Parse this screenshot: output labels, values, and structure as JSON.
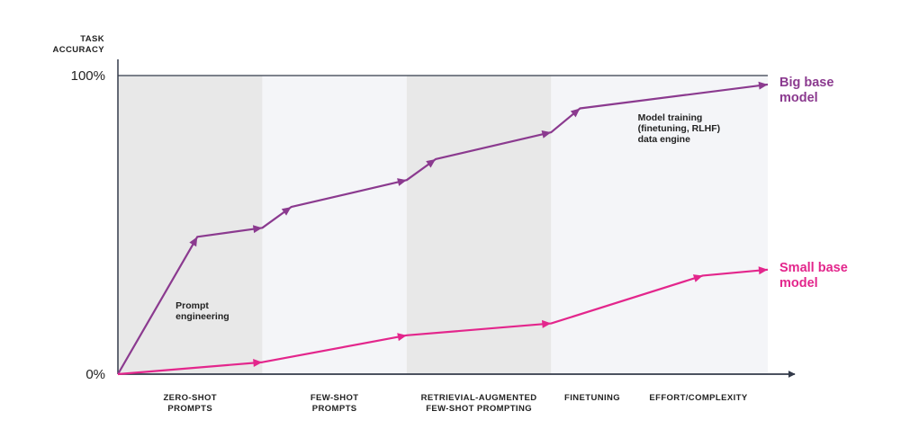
{
  "chart_data": {
    "type": "line",
    "title": "",
    "ylabel": [
      "TASK",
      "ACCURACY"
    ],
    "xlabel": "",
    "ylim": [
      0,
      100
    ],
    "xlim": [
      0,
      9
    ],
    "y_ticks": [
      {
        "value": 100,
        "label": "100%"
      },
      {
        "value": 0,
        "label": "0%"
      }
    ],
    "bands": [
      {
        "start": 0,
        "end": 2,
        "shade": "dark"
      },
      {
        "start": 2,
        "end": 4,
        "shade": "light"
      },
      {
        "start": 4,
        "end": 6,
        "shade": "dark"
      },
      {
        "start": 6,
        "end": 9,
        "shade": "light"
      }
    ],
    "categories": [
      {
        "lines": [
          "ZERO-SHOT",
          "PROMPTS"
        ],
        "center": 1
      },
      {
        "lines": [
          "FEW-SHOT",
          "PROMPTS"
        ],
        "center": 3
      },
      {
        "lines": [
          "RETRIEVIAL-AUGMENTED",
          "FEW-SHOT PROMPTING"
        ],
        "center": 5
      },
      {
        "lines": [
          "FINETUNING"
        ],
        "center": 6.57
      },
      {
        "lines": [
          "EFFORT/COMPLEXITY"
        ],
        "center": 8.04
      }
    ],
    "series": [
      {
        "name": "Big base model",
        "label_lines": [
          "Big base",
          "model"
        ],
        "color": "#8B3A8F",
        "x": [
          0,
          1.1,
          2,
          2.4,
          4,
          4.4,
          6,
          6.4,
          9
        ],
        "y": [
          0,
          46,
          49,
          56,
          65,
          72,
          81,
          89,
          97
        ]
      },
      {
        "name": "Small base model",
        "label_lines": [
          "Small base",
          "model"
        ],
        "color": "#E3268C",
        "x": [
          0,
          2,
          4,
          6,
          8.1,
          9
        ],
        "y": [
          0,
          4,
          13,
          17,
          33,
          35
        ]
      }
    ],
    "annotations": [
      {
        "lines": [
          "Prompt",
          "engineering"
        ],
        "x": 0.8,
        "y": 22
      },
      {
        "lines": [
          "Model training",
          "(finetuning, RLHF)",
          "data engine"
        ],
        "x": 7.2,
        "y": 85
      }
    ],
    "colors": {
      "band_dark": "#E8E8E8",
      "band_light": "#F4F5F8",
      "axis": "#333A4A"
    },
    "grid": false
  }
}
